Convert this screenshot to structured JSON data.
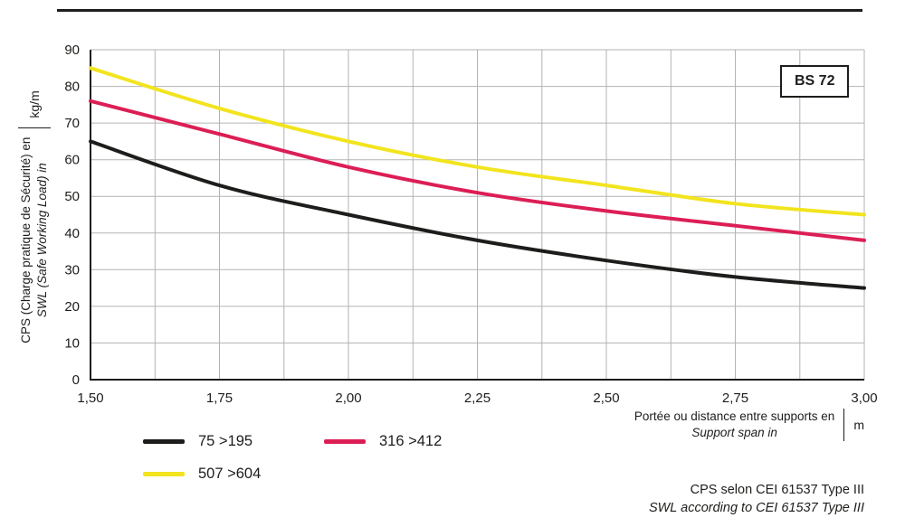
{
  "chart_data": {
    "type": "line",
    "title": "",
    "xlabel_fr": "Portée ou distance entre supports en",
    "xlabel_en": "Support span in",
    "x_unit": "m",
    "ylabel_fr": "CPS (Charge pratique de Sécurité) en",
    "ylabel_en": "SWL (Safe Working Load) in",
    "y_unit": "kg/m",
    "xlim": [
      1.5,
      3.0
    ],
    "ylim": [
      0,
      90
    ],
    "x": [
      1.5,
      1.75,
      2.0,
      2.25,
      2.5,
      2.75,
      3.0
    ],
    "x_tick_labels": [
      "1,50",
      "1,75",
      "2,00",
      "2,25",
      "2,50",
      "2,75",
      "3,00"
    ],
    "y_ticks": [
      0,
      10,
      20,
      30,
      40,
      50,
      60,
      70,
      80,
      90
    ],
    "x_minor_step": 0.125,
    "grid": true,
    "grid_color": "#b3b3b3",
    "axis_color": "#1d1d1b",
    "legend_position": "bottom-left",
    "series": [
      {
        "name": "75 >195",
        "color": "#1d1d1b",
        "values": [
          65,
          53,
          45,
          38,
          32.5,
          28,
          25
        ]
      },
      {
        "name": "316 >412",
        "color": "#dc1e55",
        "values": [
          76,
          67,
          58,
          51,
          46,
          42,
          38
        ]
      },
      {
        "name": "507 >604",
        "color": "#f2e41e",
        "values": [
          85,
          74,
          65,
          58,
          53,
          48,
          45
        ]
      }
    ]
  },
  "labels": {
    "badge": "BS 72",
    "y_axis_line1": "CPS (Charge pratique de Sécurité) en",
    "y_axis_line2": "SWL (Safe Working Load) in",
    "y_unit": "kg/m",
    "x_axis_line1": "Portée ou distance entre supports en",
    "x_axis_line2": "Support span in",
    "x_unit": "m",
    "footer_line1": "CPS selon CEI 61537 Type III",
    "footer_line2": "SWL according to CEI 61537 Type III"
  }
}
